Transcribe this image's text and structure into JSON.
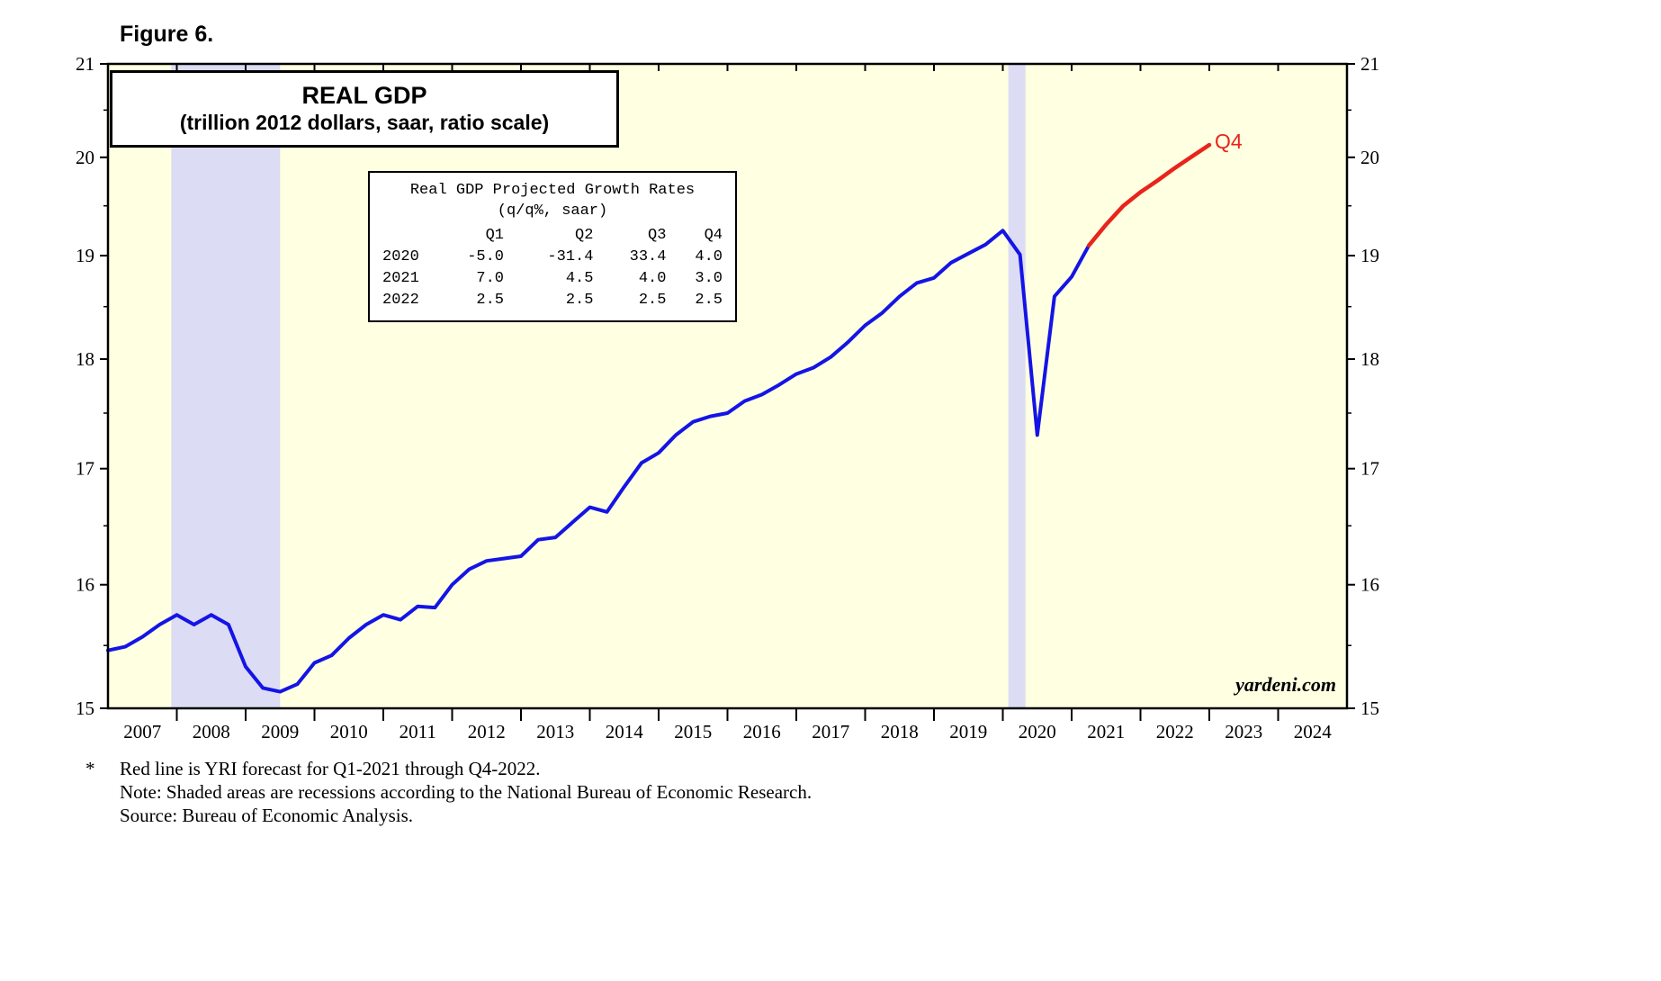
{
  "figure_label": "Figure 6.",
  "title": {
    "line1": "REAL GDP",
    "line2": "(trillion 2012 dollars, saar, ratio scale)"
  },
  "end_label": "Q4",
  "watermark": "yardeni.com",
  "footnotes": {
    "star": "*",
    "line1": "Red line is YRI forecast for Q1-2021 through Q4-2022.",
    "line2": "Note: Shaded areas are recessions according to the National Bureau of Economic Research.",
    "line3": "Source: Bureau of Economic Analysis."
  },
  "table": {
    "title1": "Real GDP Projected Growth Rates",
    "title2": "(q/q%, saar)",
    "col_headers": [
      "Q1",
      "Q2",
      "Q3",
      "Q4"
    ],
    "rows": [
      {
        "year": "2020",
        "values": [
          "-5.0",
          "-31.4",
          "33.4",
          "4.0"
        ]
      },
      {
        "year": "2021",
        "values": [
          "7.0",
          "4.5",
          "4.0",
          "3.0"
        ]
      },
      {
        "year": "2022",
        "values": [
          "2.5",
          "2.5",
          "2.5",
          "2.5"
        ]
      }
    ]
  },
  "chart_data": {
    "type": "line",
    "title": "REAL GDP (trillion 2012 dollars, saar, ratio scale)",
    "y_scale": "log",
    "ylim": [
      15,
      21
    ],
    "yticks": [
      15,
      16,
      17,
      18,
      19,
      20,
      21
    ],
    "yticks_minor": [
      15.5,
      16.5,
      17.5,
      18.5,
      19.5,
      20.5
    ],
    "x_range": [
      2007,
      2025
    ],
    "xtick_labels": [
      "2007",
      "2008",
      "2009",
      "2010",
      "2011",
      "2012",
      "2013",
      "2014",
      "2015",
      "2016",
      "2017",
      "2018",
      "2019",
      "2020",
      "2021",
      "2022",
      "2023",
      "2024"
    ],
    "recession_bands": [
      [
        2007.92,
        2009.5
      ],
      [
        2020.08,
        2020.33
      ]
    ],
    "colors": {
      "plot_bg": "#ffffe1",
      "recession_band": "#dcdcf4",
      "actual": "#1414e6",
      "forecast": "#e8241c",
      "frame": "#000000"
    },
    "series": [
      {
        "name": "actual",
        "color": "#1414e6",
        "width": 4,
        "start_t": 2007.0,
        "step": 0.25,
        "values": [
          15.46,
          15.49,
          15.57,
          15.67,
          15.75,
          15.67,
          15.75,
          15.67,
          15.33,
          15.16,
          15.13,
          15.19,
          15.36,
          15.42,
          15.56,
          15.67,
          15.75,
          15.71,
          15.82,
          15.81,
          16.0,
          16.13,
          16.2,
          16.22,
          16.24,
          16.38,
          16.4,
          16.53,
          16.66,
          16.62,
          16.84,
          17.05,
          17.14,
          17.3,
          17.42,
          17.47,
          17.5,
          17.61,
          17.67,
          17.76,
          17.86,
          17.92,
          18.02,
          18.16,
          18.32,
          18.44,
          18.6,
          18.73,
          18.78,
          18.93,
          19.02,
          19.11,
          19.25,
          19.01,
          17.3,
          18.6,
          18.79,
          19.1
        ]
      },
      {
        "name": "forecast",
        "color": "#e8241c",
        "width": 4.5,
        "start_t": 2021.25,
        "step": 0.25,
        "values": [
          19.1,
          19.31,
          19.5,
          19.64,
          19.76,
          19.89,
          20.01,
          20.13
        ]
      }
    ]
  }
}
